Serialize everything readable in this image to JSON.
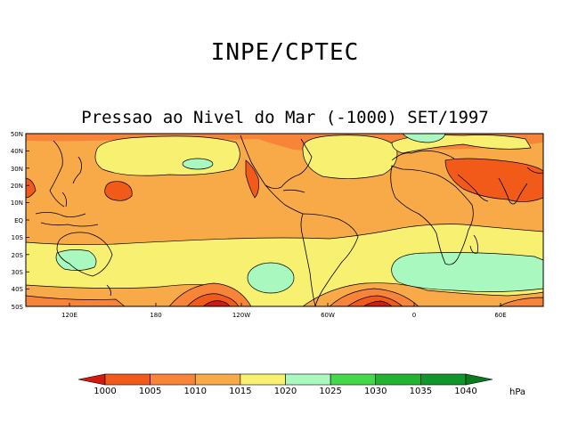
{
  "header": {
    "org_title": "INPE/CPTEC",
    "map_title": "Pressao ao Nivel do Mar (-1000) SET/1997"
  },
  "map": {
    "variable": "Sea level pressure",
    "period": "SET/1997",
    "lat_labels": [
      "50N",
      "40N",
      "30N",
      "20N",
      "10N",
      "EQ",
      "10S",
      "20S",
      "30S",
      "40S",
      "50S"
    ],
    "lon_labels": [
      "120E",
      "180",
      "120W",
      "60W",
      "0",
      "60E"
    ]
  },
  "colorbar": {
    "unit": "hPa",
    "levels": [
      "1000",
      "1005",
      "1010",
      "1015",
      "1020",
      "1025",
      "1030",
      "1035",
      "1040"
    ],
    "colors": [
      "#d21a10",
      "#f25a1a",
      "#f8843a",
      "#f8aa48",
      "#f8f070",
      "#a8f8c0",
      "#44d84a",
      "#22b430",
      "#10962a",
      "#0a7a1e"
    ]
  }
}
